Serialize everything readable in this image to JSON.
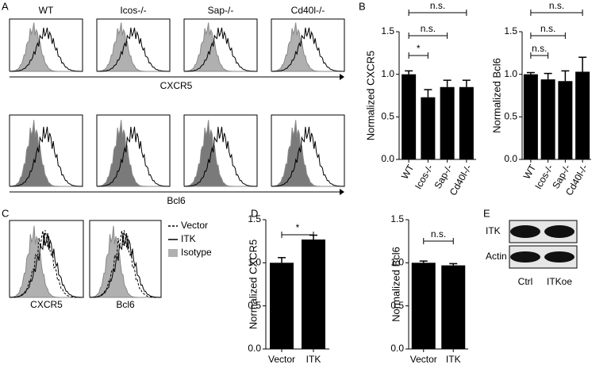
{
  "panel_labels": [
    "A",
    "B",
    "C",
    "D",
    "E"
  ],
  "panel_a": {
    "columns": [
      "WT",
      "Icos-/-",
      "Sap-/-",
      "Cd40l-/-"
    ],
    "rows": [
      "CXCR5",
      "Bcl6"
    ]
  },
  "panel_c": {
    "axes": [
      "CXCR5",
      "Bcl6"
    ],
    "legend": [
      "Vector",
      "ITK",
      "Isotype"
    ]
  },
  "panel_e": {
    "rows": [
      "ITK",
      "Actin"
    ],
    "lanes": [
      "Ctrl",
      "ITKoe"
    ]
  },
  "chart_data": [
    {
      "type": "bar",
      "y_label": "Normalized CXCR5",
      "categories": [
        "WT",
        "Icos-/-",
        "Sap-/-",
        "Cd40l-/-"
      ],
      "values": [
        1.0,
        0.73,
        0.85,
        0.85
      ],
      "errors": [
        0.04,
        0.09,
        0.08,
        0.08
      ],
      "color": "#000000",
      "ylim": [
        0,
        1.5
      ],
      "yticks": [
        {
          "value": 0,
          "label": "0.0"
        },
        {
          "value": 0.5,
          "label": "0.5"
        },
        {
          "value": 1,
          "label": "1.0"
        },
        {
          "value": 1.5,
          "label": "1.5"
        }
      ],
      "annotations": [
        "n.s.",
        "n.s.",
        "*"
      ]
    },
    {
      "type": "bar",
      "y_label": "Normalized Bcl6",
      "categories": [
        "WT",
        "Icos-/-",
        "Sap-/-",
        "Cd40l-/-"
      ],
      "values": [
        1.0,
        0.94,
        0.92,
        1.03
      ],
      "errors": [
        0.02,
        0.07,
        0.12,
        0.17
      ],
      "color": "#000000",
      "ylim": [
        0,
        1.5
      ],
      "yticks": [
        {
          "value": 0,
          "label": "0.0"
        },
        {
          "value": 0.5,
          "label": "0.5"
        },
        {
          "value": 1,
          "label": "1.0"
        },
        {
          "value": 1.5,
          "label": "1.5"
        }
      ],
      "annotations": [
        "n.s.",
        "n.s.",
        "n.s."
      ]
    },
    {
      "type": "bar",
      "y_label": "Normalized CXCR5",
      "categories": [
        "Vector",
        "ITK"
      ],
      "values": [
        1.0,
        1.27
      ],
      "errors": [
        0.06,
        0.05
      ],
      "color": "#000000",
      "ylim": [
        0,
        1.5
      ],
      "yticks": [
        {
          "value": 0,
          "label": "0.0"
        },
        {
          "value": 0.5,
          "label": "0.5"
        },
        {
          "value": 1,
          "label": "1.0"
        },
        {
          "value": 1.5,
          "label": "1.5"
        }
      ],
      "annotations": [
        "*"
      ]
    },
    {
      "type": "bar",
      "y_label": "Normalized Bcl6",
      "categories": [
        "Vector",
        "ITK"
      ],
      "values": [
        1.0,
        0.97
      ],
      "errors": [
        0.02,
        0.02
      ],
      "color": "#000000",
      "ylim": [
        0,
        1.5
      ],
      "yticks": [
        {
          "value": 0,
          "label": "0.0"
        },
        {
          "value": 0.5,
          "label": "0.5"
        },
        {
          "value": 1,
          "label": "1.0"
        },
        {
          "value": 1.5,
          "label": "1.5"
        }
      ],
      "annotations": [
        "n.s."
      ]
    }
  ]
}
